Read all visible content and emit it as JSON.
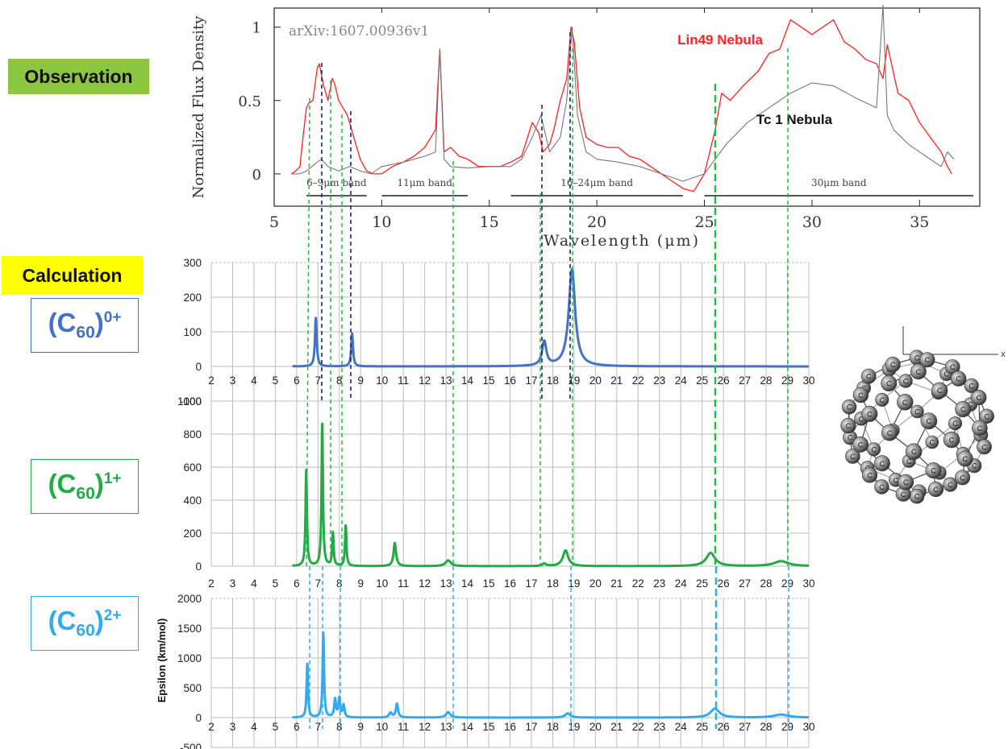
{
  "labels": {
    "observation": "Observation",
    "calculation": "Calculation"
  },
  "species": [
    {
      "prefix": "(C",
      "sub": "60",
      "close": ")",
      "sup": "0+"
    },
    {
      "prefix": "(C",
      "sub": "60",
      "close": ")",
      "sup": "1+"
    },
    {
      "prefix": "(C",
      "sub": "60",
      "close": ")",
      "sup": "2+"
    }
  ],
  "colors": {
    "c60_0": "#4472c4",
    "c60_1": "#22aa44",
    "c60_2": "#33aaee",
    "lin49": "#ff2020",
    "tc1": "#777777",
    "guide_dark": "#1a2a6c",
    "guide_green": "#22bb44",
    "guide_blue": "#33aaee"
  },
  "chart_data": [
    {
      "type": "line",
      "id": "observation",
      "xlabel": "Wavelength (μm)",
      "ylabel": "Normalized Flux Density",
      "xlim": [
        5,
        37.8
      ],
      "ylim": [
        -0.22,
        1.13
      ],
      "xticks": [
        5,
        10,
        15,
        20,
        25,
        30,
        35
      ],
      "yticks": [
        0,
        0.5,
        1
      ],
      "ytick_labels": [
        "0",
        "0.5",
        "1"
      ],
      "annotation": "arXiv:1607.00936v1",
      "bands": [
        {
          "label": "6–9μm band",
          "start": 6.5,
          "end": 9.3
        },
        {
          "label": "11μm band",
          "start": 10,
          "end": 14
        },
        {
          "label": "16–24μm band",
          "start": 16,
          "end": 24
        },
        {
          "label": "30μm band",
          "start": 25,
          "end": 37.5
        }
      ],
      "series": [
        {
          "name": "Lin49 Nebula",
          "x": [
            5.8,
            6.0,
            6.2,
            6.3,
            6.5,
            6.6,
            6.8,
            7.0,
            7.1,
            7.3,
            7.5,
            7.7,
            7.8,
            8.0,
            8.2,
            8.4,
            8.5,
            8.7,
            9.0,
            9.3,
            9.6,
            10.0,
            10.5,
            11.0,
            11.5,
            12.0,
            12.5,
            12.7,
            12.9,
            13.2,
            13.6,
            14.0,
            14.5,
            15.0,
            15.5,
            16.0,
            16.5,
            17.0,
            17.3,
            17.5,
            17.8,
            18.0,
            18.3,
            18.6,
            18.8,
            18.95,
            19.2,
            19.5,
            20.0,
            20.5,
            21.0,
            21.5,
            22.0,
            22.5,
            23.0,
            23.5,
            24.0,
            24.5,
            25.0,
            25.5,
            25.8,
            26.2,
            26.8,
            27.5,
            28.0,
            28.5,
            29.0,
            29.5,
            30.0,
            30.5,
            31.0,
            31.5,
            32.0,
            32.5,
            33.0,
            33.3,
            33.5,
            34.0,
            34.5,
            35.0,
            35.5,
            36.0,
            36.3,
            36.5
          ],
          "y": [
            0.0,
            0.02,
            0.05,
            0.2,
            0.45,
            0.48,
            0.5,
            0.72,
            0.75,
            0.6,
            0.5,
            0.65,
            0.62,
            0.5,
            0.45,
            0.4,
            0.35,
            0.25,
            0.1,
            0.02,
            0.0,
            0.0,
            0.05,
            0.08,
            0.12,
            0.18,
            0.3,
            0.85,
            0.15,
            0.18,
            0.12,
            0.1,
            0.05,
            0.05,
            0.05,
            0.08,
            0.12,
            0.35,
            0.28,
            0.15,
            0.2,
            0.3,
            0.5,
            0.65,
            1.0,
            0.9,
            0.45,
            0.25,
            0.2,
            0.18,
            0.18,
            0.12,
            0.1,
            0.05,
            0.0,
            -0.05,
            -0.1,
            -0.12,
            0.0,
            0.3,
            0.55,
            0.5,
            0.6,
            0.7,
            0.82,
            0.85,
            1.05,
            1.0,
            0.95,
            1.0,
            1.05,
            0.9,
            0.85,
            0.78,
            0.75,
            0.65,
            0.88,
            0.55,
            0.5,
            0.35,
            0.25,
            0.15,
            0.05,
            0.0
          ]
        },
        {
          "name": "Tc 1 Nebula",
          "x": [
            5.8,
            6.2,
            6.5,
            7.0,
            7.2,
            7.5,
            8.0,
            8.5,
            9.0,
            9.5,
            10.0,
            11.0,
            11.5,
            12.0,
            12.5,
            12.7,
            12.9,
            13.2,
            14.0,
            15.0,
            16.0,
            16.5,
            17.0,
            17.4,
            17.8,
            18.3,
            18.6,
            18.85,
            19.1,
            19.5,
            20.0,
            21.0,
            22.0,
            23.0,
            24.0,
            25.0,
            26.0,
            27.0,
            28.0,
            29.0,
            30.0,
            31.0,
            32.0,
            33.0,
            33.3,
            33.5,
            33.8,
            34.5,
            35.5,
            36.0,
            36.3,
            36.6
          ],
          "y": [
            0.0,
            0.0,
            0.02,
            0.08,
            0.1,
            0.05,
            0.02,
            0.05,
            0.02,
            0.0,
            0.05,
            0.08,
            0.1,
            0.12,
            0.15,
            0.85,
            0.1,
            0.05,
            0.04,
            0.05,
            0.05,
            0.1,
            0.25,
            0.4,
            0.15,
            0.25,
            0.5,
            1.0,
            0.4,
            0.15,
            0.1,
            0.08,
            0.05,
            0.0,
            -0.05,
            0.0,
            0.2,
            0.35,
            0.45,
            0.55,
            0.62,
            0.6,
            0.52,
            0.45,
            1.15,
            0.4,
            0.3,
            0.2,
            0.1,
            0.05,
            0.15,
            0.1
          ]
        }
      ]
    },
    {
      "type": "line",
      "id": "c60_0",
      "xlim": [
        2,
        30
      ],
      "ylim": [
        -100,
        300
      ],
      "xticks": [
        2,
        3,
        4,
        5,
        6,
        7,
        8,
        9,
        10,
        11,
        12,
        13,
        14,
        15,
        16,
        17,
        18,
        19,
        20,
        21,
        22,
        23,
        24,
        25,
        26,
        27,
        28,
        29,
        30
      ],
      "yticks": [
        -100,
        0,
        100,
        200,
        300
      ],
      "start": 5.8,
      "peaks": [
        {
          "x": 6.9,
          "y": 140,
          "w": 0.05
        },
        {
          "x": 8.6,
          "y": 95,
          "w": 0.05
        },
        {
          "x": 17.6,
          "y": 70,
          "w": 0.12
        },
        {
          "x": 18.9,
          "y": 280,
          "w": 0.18
        }
      ]
    },
    {
      "type": "line",
      "id": "c60_1",
      "xlim": [
        2,
        30
      ],
      "ylim": [
        0,
        1000
      ],
      "xticks": [
        2,
        3,
        4,
        5,
        6,
        7,
        8,
        9,
        10,
        11,
        12,
        13,
        14,
        15,
        16,
        17,
        18,
        19,
        20,
        21,
        22,
        23,
        24,
        25,
        26,
        27,
        28,
        29,
        30
      ],
      "yticks": [
        0,
        200,
        400,
        600,
        800,
        1000
      ],
      "start": 5.8,
      "peaks": [
        {
          "x": 6.45,
          "y": 580,
          "w": 0.04
        },
        {
          "x": 7.2,
          "y": 860,
          "w": 0.04
        },
        {
          "x": 7.7,
          "y": 200,
          "w": 0.04
        },
        {
          "x": 8.3,
          "y": 245,
          "w": 0.04
        },
        {
          "x": 10.6,
          "y": 140,
          "w": 0.07
        },
        {
          "x": 13.1,
          "y": 35,
          "w": 0.15
        },
        {
          "x": 17.6,
          "y": 15,
          "w": 0.1
        },
        {
          "x": 18.6,
          "y": 95,
          "w": 0.15
        },
        {
          "x": 25.4,
          "y": 80,
          "w": 0.25
        },
        {
          "x": 28.7,
          "y": 30,
          "w": 0.4
        }
      ]
    },
    {
      "type": "line",
      "id": "c60_2",
      "xlim": [
        2,
        30
      ],
      "ylim": [
        -500,
        2000
      ],
      "xticks": [
        2,
        3,
        4,
        5,
        6,
        7,
        8,
        9,
        10,
        11,
        12,
        13,
        14,
        15,
        16,
        17,
        18,
        19,
        20,
        21,
        22,
        23,
        24,
        25,
        26,
        27,
        28,
        29,
        30
      ],
      "yticks": [
        -500,
        0,
        500,
        1000,
        1500,
        2000
      ],
      "ylabel": "Epsilon (km/mol)",
      "start": 5.8,
      "peaks": [
        {
          "x": 6.5,
          "y": 900,
          "w": 0.04
        },
        {
          "x": 7.25,
          "y": 1420,
          "w": 0.04
        },
        {
          "x": 7.8,
          "y": 300,
          "w": 0.05
        },
        {
          "x": 8.0,
          "y": 320,
          "w": 0.05
        },
        {
          "x": 8.2,
          "y": 200,
          "w": 0.05
        },
        {
          "x": 10.4,
          "y": 80,
          "w": 0.08
        },
        {
          "x": 10.7,
          "y": 230,
          "w": 0.06
        },
        {
          "x": 13.1,
          "y": 90,
          "w": 0.12
        },
        {
          "x": 18.7,
          "y": 70,
          "w": 0.15
        },
        {
          "x": 25.6,
          "y": 150,
          "w": 0.25
        },
        {
          "x": 28.7,
          "y": 50,
          "w": 0.4
        }
      ]
    },
    {
      "type": "diagram",
      "id": "c60_molecule",
      "atom_label": "C",
      "axis_label": "x"
    }
  ]
}
